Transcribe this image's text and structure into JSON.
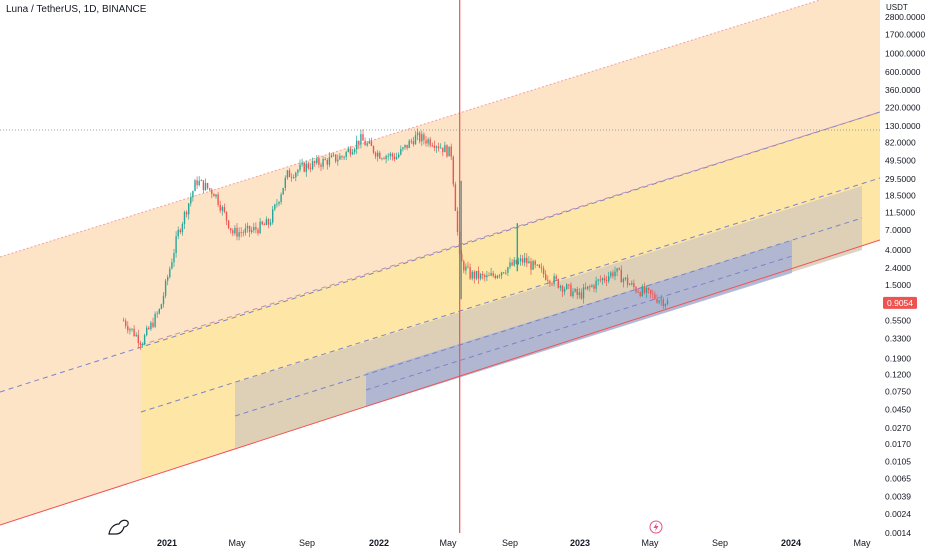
{
  "header": {
    "title": "Luna / TetherUS, 1D, BINANCE",
    "currency": "USDT"
  },
  "icons": {
    "logo": "dinosaur-logo-icon",
    "event": "lightning-event-icon"
  },
  "colors": {
    "up": "#26a69a",
    "down": "#ef5350",
    "channel_outer": "#fde4c7",
    "channel_mid": "#fde6a6",
    "channel_gray": "#d7cbb8",
    "channel_blue": "#aab3d6",
    "price_badge": "#ef5350"
  },
  "chart_data": {
    "type": "line",
    "scale": "log",
    "last_price": "0.9054",
    "y_ticks": [
      "2800.0000",
      "1700.0000",
      "1000.0000",
      "600.0000",
      "360.0000",
      "220.0000",
      "130.0000",
      "82.0000",
      "49.5000",
      "29.5000",
      "18.5000",
      "11.5000",
      "7.0000",
      "4.0000",
      "2.4000",
      "1.5000",
      "0.9054",
      "0.5500",
      "0.3300",
      "0.1900",
      "0.1200",
      "0.0750",
      "0.0450",
      "0.0270",
      "0.0170",
      "0.0105",
      "0.0065",
      "0.0039",
      "0.0024",
      "0.0014"
    ],
    "x_ticks": [
      "2021",
      "May",
      "Sep",
      "2022",
      "May",
      "Sep",
      "2023",
      "May",
      "Sep",
      "2024",
      "May"
    ],
    "series": [
      {
        "values": [
          {
            "x": "2020-11",
            "y": 0.55
          },
          {
            "x": "2020-12",
            "y": 0.3
          },
          {
            "x": "2021-01",
            "y": 0.75
          },
          {
            "x": "2021-02",
            "y": 6.5
          },
          {
            "x": "2021-03",
            "y": 28
          },
          {
            "x": "2021-04",
            "y": 20
          },
          {
            "x": "2021-05",
            "y": 6.5
          },
          {
            "x": "2021-06",
            "y": 6.8
          },
          {
            "x": "2021-07",
            "y": 8.5
          },
          {
            "x": "2021-08",
            "y": 33
          },
          {
            "x": "2021-09",
            "y": 42
          },
          {
            "x": "2021-10",
            "y": 48
          },
          {
            "x": "2021-11",
            "y": 55
          },
          {
            "x": "2021-12",
            "y": 90
          },
          {
            "x": "2022-01",
            "y": 60
          },
          {
            "x": "2022-02",
            "y": 55
          },
          {
            "x": "2022-03",
            "y": 95
          },
          {
            "x": "2022-04",
            "y": 85
          },
          {
            "x": "2022-05",
            "y": 60
          },
          {
            "x": "2022-05-15",
            "y": 3.0
          },
          {
            "x": "2022-06",
            "y": 2.0
          },
          {
            "x": "2022-07",
            "y": 1.8
          },
          {
            "x": "2022-08",
            "y": 2.4
          },
          {
            "x": "2022-09",
            "y": 3.0
          },
          {
            "x": "2022-10",
            "y": 2.1
          },
          {
            "x": "2022-11",
            "y": 1.5
          },
          {
            "x": "2022-12",
            "y": 1.1
          },
          {
            "x": "2023-01",
            "y": 1.6
          },
          {
            "x": "2023-02",
            "y": 2.2
          },
          {
            "x": "2023-03",
            "y": 1.4
          },
          {
            "x": "2023-04",
            "y": 1.1
          },
          {
            "x": "2023-05",
            "y": 0.9054
          }
        ]
      }
    ]
  }
}
